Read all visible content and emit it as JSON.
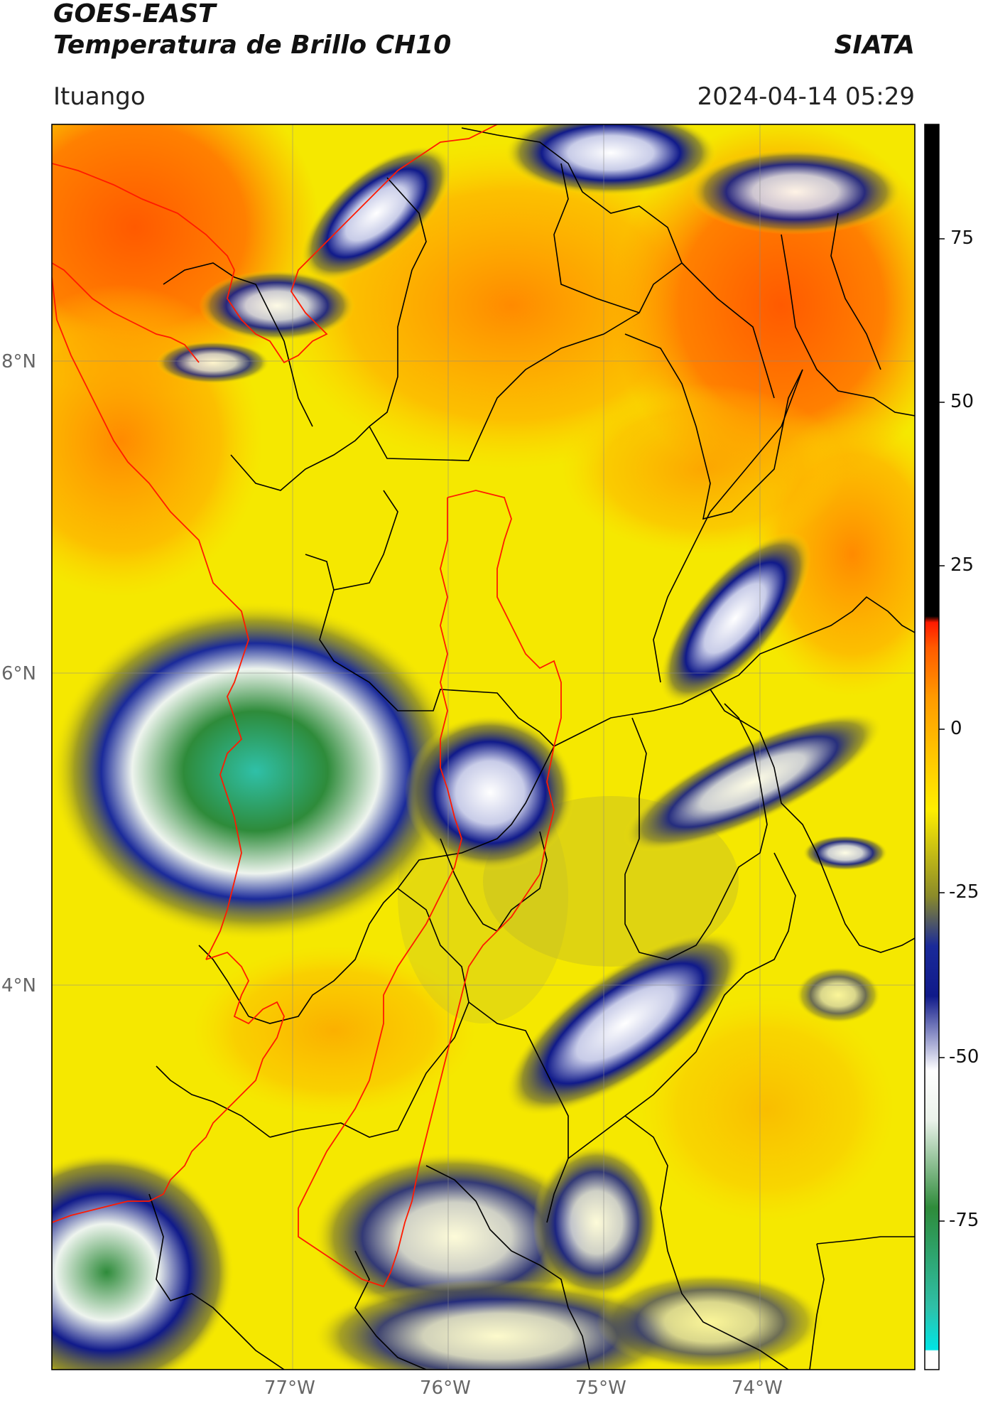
{
  "header": {
    "satellite": "GOES-EAST",
    "product": "Temperatura de Brillo CH10",
    "org": "SIATA",
    "region": "Ituango",
    "datetime": "2024-04-14 05:29"
  },
  "axes": {
    "lat_labels": [
      "8°N",
      "6°N",
      "4°N"
    ],
    "lon_labels": [
      "77°W",
      "76°W",
      "75°W",
      "74°W"
    ]
  },
  "colorbar": {
    "ticks": [
      "75",
      "50",
      "25",
      "0",
      "-25",
      "-50",
      "-75"
    ],
    "colors": {
      "black": "#000000",
      "red": "#ff1a00",
      "orange": "#ff8c00",
      "yellow": "#ffee00",
      "olive": "#8a8a2a",
      "navy": "#101a8a",
      "white": "#ffffff",
      "green": "#2e8b3a",
      "teal": "#2fc0a8",
      "cyan": "#00e5e5"
    }
  }
}
